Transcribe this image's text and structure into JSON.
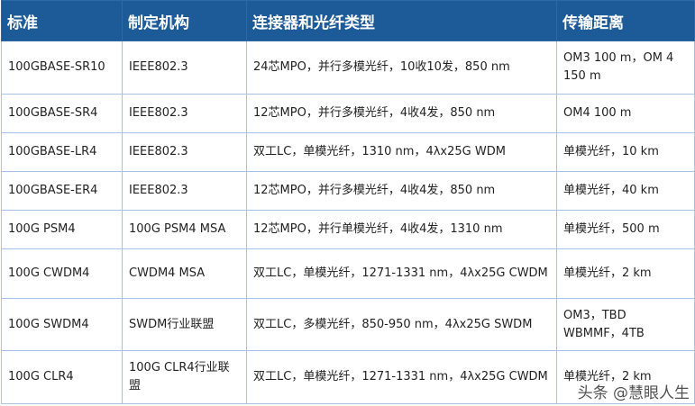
{
  "headers": [
    "标准",
    "制定机构",
    "连接器和光纤类型",
    "传输距离"
  ],
  "rows": [
    [
      "100GBASE-SR10",
      "IEEE802.3",
      "24芯MPO，并行多模光纤，10收10发，850 nm",
      "OM3 100 m，OM 4 150 m"
    ],
    [
      "100GBASE-SR4",
      "IEEE802.3",
      "12芯MPO，并行多模光纤，4收4发，850 nm",
      "OM4 100 m"
    ],
    [
      "100GBASE-LR4",
      "IEEE802.3",
      "双工LC，单模光纤，1310 nm，4λx25G WDM",
      "单模光纤，10 km"
    ],
    [
      "100GBASE-ER4",
      "IEEE802.3",
      "12芯MPO，并行多模光纤，4收4发，850 nm",
      "单模光纤，40 km"
    ],
    [
      "100G PSM4",
      "100G PSM4 MSA",
      "12芯MPO，并行单模光纤，4收4发，1310 nm",
      "单模光纤，500 m"
    ],
    [
      "100G CWDM4",
      "CWDM4 MSA",
      "双工LC，单模光纤，1271-1331 nm，4λx25G CWDM",
      "单模光纤，2 km"
    ],
    [
      "100G SWDM4",
      "SWDM行业联盟",
      "双工LC，多模光纤，850-950 nm，4λx25G SWDM",
      "OM3，TBD WBMMF，4TB"
    ],
    [
      "100G CLR4",
      "100G CLR4行业联盟",
      "双工LC，单模光纤，1271-1331 nm，4λx25G CWDM",
      "单模光纤，2 km"
    ]
  ],
  "watermark": "头条 @慧眼人生"
}
